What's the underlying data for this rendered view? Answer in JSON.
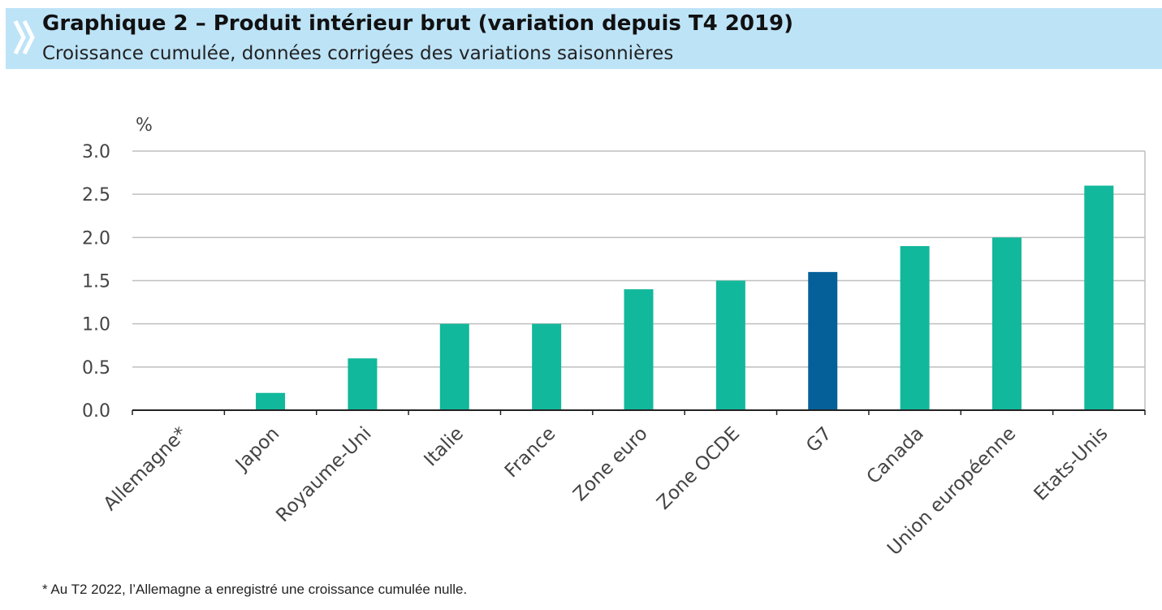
{
  "header": {
    "title": "Graphique 2 – Produit intérieur brut (variation depuis T4 2019)",
    "subtitle": "Croissance cumulée, données corrigées des variations saisonnières"
  },
  "footnote": "* Au T2 2022, l’Allemagne a enregistré une croissance cumulée nulle.",
  "colors": {
    "header_bg": "#bde3f7",
    "bar": "#12b89b",
    "bar_highlight": "#05609a",
    "grid": "#bfbfbf",
    "axis_text": "#444444"
  },
  "chart_data": {
    "type": "bar",
    "ylabel": "%",
    "ylim": [
      0,
      3.0
    ],
    "yticks": [
      "0.0",
      "0.5",
      "1.0",
      "1.5",
      "2.0",
      "2.5",
      "3.0"
    ],
    "grid": true,
    "categories": [
      "Allemagne*",
      "Japon",
      "Royaume-Uni",
      "Italie",
      "France",
      "Zone euro",
      "Zone OCDE",
      "G7",
      "Canada",
      "Union européenne",
      "Etats-Unis"
    ],
    "values": [
      0.0,
      0.2,
      0.6,
      1.0,
      1.0,
      1.4,
      1.5,
      1.6,
      1.9,
      2.0,
      2.6
    ],
    "highlight": [
      "G7"
    ]
  }
}
